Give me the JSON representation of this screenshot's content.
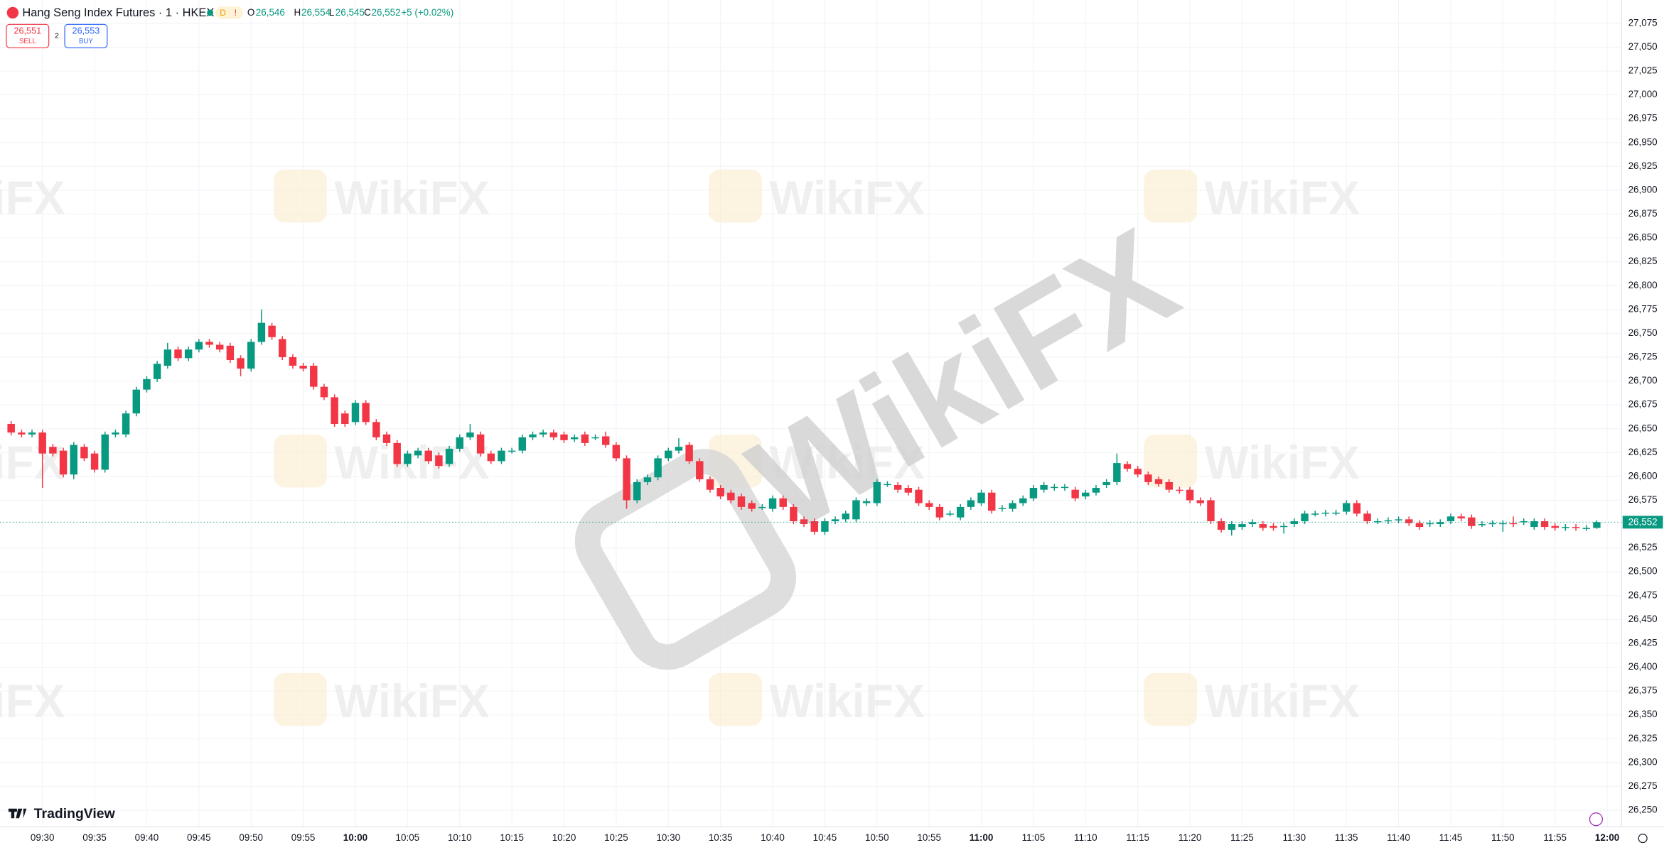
{
  "header": {
    "symbol": "Hang Seng Index Futures · 1 · HKEX",
    "badge": "D",
    "o_label": "O",
    "open": "26,546",
    "h_label": "H",
    "high": "26,554",
    "l_label": "L",
    "low": "26,545",
    "c_label": "C",
    "close": "26,552",
    "change": "+5 (+0.02%)"
  },
  "trade": {
    "sell_price": "26,551",
    "sell_label": "SELL",
    "spread": "2",
    "buy_price": "26,553",
    "buy_label": "BUY"
  },
  "brand": "TradingView",
  "watermark": "WikiFX",
  "chart_data": {
    "type": "candlestick",
    "up_color": "#089981",
    "down_color": "#f23645",
    "grid": true,
    "ylim": [
      26225,
      27100
    ],
    "yticks": [
      {
        "value": 26250,
        "label": "26,250"
      },
      {
        "value": 26275,
        "label": "26,275"
      },
      {
        "value": 26300,
        "label": "26,300"
      },
      {
        "value": 26325,
        "label": "26,325"
      },
      {
        "value": 26350,
        "label": "26,350"
      },
      {
        "value": 26375,
        "label": "26,375"
      },
      {
        "value": 26400,
        "label": "26,400"
      },
      {
        "value": 26425,
        "label": "26,425"
      },
      {
        "value": 26450,
        "label": "26,450"
      },
      {
        "value": 26475,
        "label": "26,475"
      },
      {
        "value": 26500,
        "label": "26,500"
      },
      {
        "value": 26525,
        "label": "26,525"
      },
      {
        "value": 26575,
        "label": "26,575"
      },
      {
        "value": 26600,
        "label": "26,600"
      },
      {
        "value": 26625,
        "label": "26,625"
      },
      {
        "value": 26650,
        "label": "26,650"
      },
      {
        "value": 26675,
        "label": "26,675"
      },
      {
        "value": 26700,
        "label": "26,700"
      },
      {
        "value": 26725,
        "label": "26,725"
      },
      {
        "value": 26750,
        "label": "26,750"
      },
      {
        "value": 26775,
        "label": "26,775"
      },
      {
        "value": 26800,
        "label": "26,800"
      },
      {
        "value": 26825,
        "label": "26,825"
      },
      {
        "value": 26850,
        "label": "26,850"
      },
      {
        "value": 26875,
        "label": "26,875"
      },
      {
        "value": 26900,
        "label": "26,900"
      },
      {
        "value": 26925,
        "label": "26,925"
      },
      {
        "value": 26950,
        "label": "26,950"
      },
      {
        "value": 26975,
        "label": "26,975"
      },
      {
        "value": 27000,
        "label": "27,000"
      },
      {
        "value": 27025,
        "label": "27,025"
      },
      {
        "value": 27050,
        "label": "27,050"
      },
      {
        "value": 27075,
        "label": "27,075"
      }
    ],
    "last_price": {
      "value": 26552,
      "label": "26,552"
    },
    "categories": [
      null,
      null,
      null,
      "09:30",
      null,
      null,
      null,
      null,
      "09:35",
      null,
      null,
      null,
      null,
      "09:40",
      null,
      null,
      null,
      null,
      "09:45",
      null,
      null,
      null,
      null,
      "09:50",
      null,
      null,
      null,
      null,
      "09:55",
      null,
      null,
      null,
      null,
      "10:00",
      null,
      null,
      null,
      null,
      "10:05",
      null,
      null,
      null,
      null,
      "10:10",
      null,
      null,
      null,
      null,
      "10:15",
      null,
      null,
      null,
      null,
      "10:20",
      null,
      null,
      null,
      null,
      "10:25",
      null,
      null,
      null,
      null,
      "10:30",
      null,
      null,
      null,
      null,
      "10:35",
      null,
      null,
      null,
      null,
      "10:40",
      null,
      null,
      null,
      null,
      "10:45",
      null,
      null,
      null,
      null,
      "10:50",
      null,
      null,
      null,
      null,
      "10:55",
      null,
      null,
      null,
      null,
      "11:00",
      null,
      null,
      null,
      null,
      "11:05",
      null,
      null,
      null,
      null,
      "11:10",
      null,
      null,
      null,
      null,
      "11:15",
      null,
      null,
      null,
      null,
      "11:20",
      null,
      null,
      null,
      null,
      "11:25",
      null,
      null,
      null,
      null,
      "11:30",
      null,
      null,
      null,
      null,
      "11:35",
      null,
      null,
      null,
      null,
      "11:40",
      null,
      null,
      null,
      null,
      "11:45",
      null,
      null,
      null,
      null,
      "11:50",
      null,
      null,
      null,
      null,
      "11:55",
      null,
      null,
      null,
      null,
      "12:00"
    ],
    "open": [
      26655,
      26646,
      26644,
      26646,
      26631,
      26627,
      26602,
      26631,
      26624,
      26607,
      26644,
      26644,
      26666,
      26691,
      26702,
      26716,
      26733,
      26724,
      26733,
      26741,
      26738,
      26737,
      26724,
      26713,
      26741,
      26758,
      26744,
      26725,
      26716,
      26716,
      26694,
      26683,
      26666,
      26657,
      26677,
      26657,
      26644,
      26635,
      26613,
      26622,
      26627,
      26622,
      26613,
      26629,
      26641,
      26644,
      26624,
      26616,
      26627,
      26627,
      26641,
      26644,
      26646,
      26644,
      26639,
      26644,
      26641,
      26642,
      26633,
      26619,
      26575,
      26594,
      26599,
      26619,
      26627,
      26633,
      26616,
      26597,
      26588,
      26583,
      26579,
      26572,
      26568,
      26566,
      26577,
      26568,
      26555,
      26553,
      26542,
      26553,
      26555,
      26555,
      26572,
      26572,
      26592,
      26591,
      26588,
      26586,
      26572,
      26568,
      26561,
      26557,
      26568,
      26572,
      26583,
      26566,
      26566,
      26572,
      26577,
      26586,
      26588,
      26588,
      26586,
      26579,
      26583,
      26591,
      26594,
      26613,
      26608,
      26602,
      26597,
      26594,
      26586,
      26586,
      26575,
      26575,
      26553,
      26544,
      26547,
      26550,
      26550,
      26548,
      26547,
      26550,
      26553,
      26561,
      26561,
      26562,
      26563,
      26572,
      26561,
      26553,
      26553,
      26554,
      26555,
      26551,
      26550,
      26550,
      26553,
      26558,
      26557,
      26550,
      26550,
      26551,
      26551,
      26552,
      26547,
      26553,
      26548,
      26546,
      26547,
      26546,
      26546,
      null
    ],
    "high": [
      26658,
      26649,
      26649,
      26649,
      26634,
      26630,
      26636,
      26634,
      26627,
      26647,
      26649,
      26669,
      26694,
      26705,
      26721,
      26740,
      26736,
      26736,
      26744,
      26744,
      26741,
      26740,
      26727,
      26744,
      26775,
      26761,
      26747,
      26728,
      26719,
      26719,
      26697,
      26686,
      26669,
      26680,
      26680,
      26660,
      26647,
      26638,
      26627,
      26630,
      26630,
      26625,
      26632,
      26644,
      26655,
      26647,
      26627,
      26630,
      26630,
      26644,
      26647,
      26649,
      26649,
      26647,
      26644,
      26647,
      26644,
      26647,
      26636,
      26622,
      26597,
      26602,
      26622,
      26630,
      26640,
      26636,
      26619,
      26600,
      26591,
      26586,
      26582,
      26575,
      26571,
      26580,
      26580,
      26571,
      26558,
      26556,
      26556,
      26558,
      26564,
      26578,
      26577,
      26597,
      26595,
      26594,
      26591,
      26589,
      26575,
      26571,
      26564,
      26571,
      26578,
      26586,
      26586,
      26570,
      26575,
      26580,
      26591,
      26594,
      26592,
      26592,
      26589,
      26586,
      26591,
      26597,
      26624,
      26616,
      26611,
      26605,
      26600,
      26597,
      26589,
      26589,
      26578,
      26578,
      26556,
      26553,
      26553,
      26555,
      26553,
      26551,
      26551,
      26556,
      26564,
      26564,
      26565,
      26565,
      26575,
      26575,
      26564,
      26556,
      26557,
      26558,
      26558,
      26554,
      26554,
      26555,
      26561,
      26561,
      26560,
      26553,
      26554,
      26554,
      26558,
      26556,
      26556,
      26556,
      26551,
      26550,
      26550,
      26549,
      26554,
      null
    ],
    "low": [
      26643,
      26641,
      26641,
      26588,
      26621,
      26599,
      26597,
      26616,
      26604,
      26604,
      26641,
      26641,
      26663,
      26688,
      26699,
      26713,
      26721,
      26721,
      26730,
      26735,
      26730,
      26719,
      26705,
      26710,
      26738,
      26743,
      26722,
      26713,
      26710,
      26691,
      26680,
      26652,
      26652,
      26654,
      26654,
      26638,
      26632,
      26610,
      26610,
      26619,
      26613,
      26608,
      26610,
      26626,
      26638,
      26621,
      26613,
      26613,
      26624,
      26624,
      26638,
      26641,
      26638,
      26635,
      26636,
      26632,
      26638,
      26630,
      26616,
      26566,
      26572,
      26591,
      26596,
      26616,
      26624,
      26613,
      26594,
      26583,
      26576,
      26572,
      26565,
      26563,
      26565,
      26563,
      26565,
      26550,
      26547,
      26539,
      26539,
      26550,
      26552,
      26552,
      26569,
      26569,
      26589,
      26583,
      26580,
      26569,
      26565,
      26554,
      26558,
      26554,
      26565,
      26569,
      26561,
      26563,
      26563,
      26569,
      26574,
      26583,
      26585,
      26585,
      26574,
      26576,
      26580,
      26588,
      26591,
      26605,
      26599,
      26591,
      26589,
      26583,
      26582,
      26572,
      26569,
      26550,
      26541,
      26538,
      26544,
      26547,
      26543,
      26543,
      26540,
      26547,
      26550,
      26558,
      26558,
      26559,
      26560,
      26558,
      26550,
      26550,
      26550,
      26551,
      26548,
      26544,
      26547,
      26547,
      26550,
      26553,
      26545,
      26547,
      26547,
      26542,
      26547,
      26549,
      26544,
      26544,
      26543,
      26543,
      26543,
      26543,
      26545,
      null
    ],
    "close": [
      26646,
      26644,
      26646,
      26624,
      26624,
      26602,
      26633,
      26619,
      26607,
      26644,
      26646,
      26666,
      26691,
      26702,
      26718,
      26733,
      26724,
      26733,
      26741,
      26738,
      26733,
      26722,
      26713,
      26741,
      26761,
      26746,
      26725,
      26716,
      26713,
      26694,
      26683,
      26655,
      26655,
      26677,
      26657,
      26641,
      26635,
      26613,
      26624,
      26627,
      26616,
      26611,
      26629,
      26641,
      26646,
      26624,
      26616,
      26627,
      26627,
      26641,
      26644,
      26646,
      26641,
      26638,
      26641,
      26635,
      26641,
      26633,
      26619,
      26575,
      26594,
      26599,
      26619,
      26627,
      26631,
      26616,
      26597,
      26586,
      26579,
      26575,
      26568,
      26566,
      26568,
      26577,
      26568,
      26553,
      26550,
      26542,
      26553,
      26555,
      26561,
      26575,
      26574,
      26594,
      26592,
      26586,
      26583,
      26572,
      26568,
      26557,
      26561,
      26568,
      26575,
      26583,
      26564,
      26567,
      26572,
      26577,
      26588,
      26591,
      26589,
      26589,
      26577,
      26583,
      26588,
      26594,
      26614,
      26608,
      26602,
      26594,
      26592,
      26586,
      26585,
      26575,
      26572,
      26553,
      26544,
      26550,
      26550,
      26552,
      26546,
      26546,
      26548,
      26553,
      26561,
      26561,
      26562,
      26562,
      26572,
      26561,
      26553,
      26553,
      26554,
      26555,
      26551,
      26547,
      26551,
      26552,
      26558,
      26556,
      26548,
      26550,
      26551,
      26551,
      26550,
      26553,
      26553,
      26547,
      26546,
      26547,
      26546,
      26546,
      26552,
      null
    ]
  }
}
